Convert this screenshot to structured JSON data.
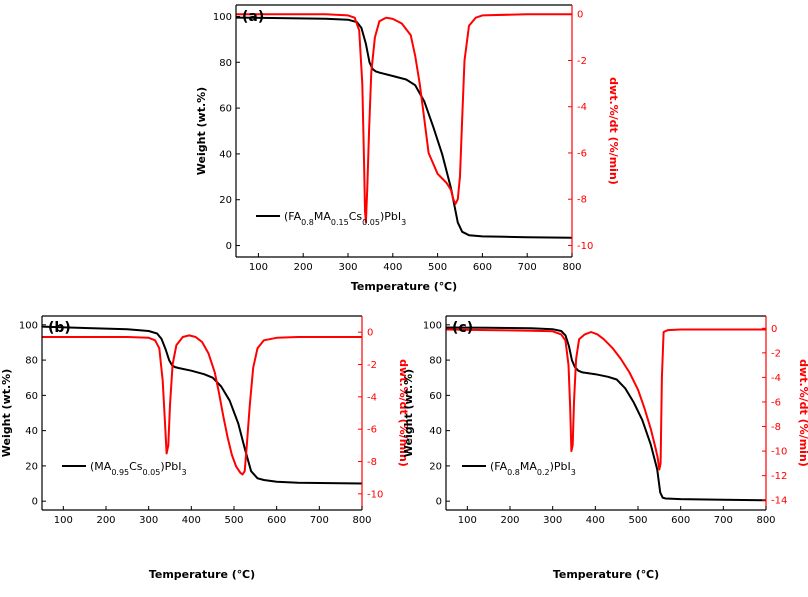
{
  "chart_data": [
    {
      "type": "line",
      "panel_label": "(a)",
      "xlabel": "Temperature (℃)",
      "ylabel": "Weight (wt.%)",
      "y2label": "dwt.%/dt (%/min)",
      "xlim": [
        50,
        800
      ],
      "ylim": [
        -5,
        105
      ],
      "y2lim": [
        -10.5,
        0.4
      ],
      "xticks": [
        100,
        200,
        300,
        400,
        500,
        600,
        700,
        800
      ],
      "yticks": [
        0,
        20,
        40,
        60,
        80,
        100
      ],
      "y2ticks": [
        0,
        -2,
        -4,
        -6,
        -8,
        -10
      ],
      "legend": {
        "label": "(FA0.8MA0.15Cs0.05)PbI3",
        "label_parts": [
          "(FA",
          "0.8",
          "MA",
          "0.15",
          "Cs",
          "0.05",
          ")PbI",
          "3"
        ],
        "position": "bottom-left"
      },
      "series": [
        {
          "name": "Weight",
          "axis": "left",
          "color": "#000000",
          "x": [
            50,
            150,
            250,
            300,
            320,
            330,
            340,
            348,
            355,
            362,
            370,
            400,
            430,
            450,
            470,
            490,
            510,
            530,
            545,
            555,
            570,
            600,
            650,
            700,
            800
          ],
          "y": [
            99.5,
            99.3,
            99,
            98.6,
            97.5,
            95,
            88,
            80,
            77,
            76,
            75.5,
            74,
            72.5,
            70,
            63,
            52,
            40,
            25,
            10,
            6,
            4.5,
            4,
            3.8,
            3.6,
            3.4
          ]
        },
        {
          "name": "dwt.%/dt",
          "axis": "right",
          "color": "#ff0000",
          "x": [
            50,
            150,
            250,
            300,
            315,
            325,
            332,
            336,
            338,
            340,
            343,
            347,
            352,
            360,
            370,
            385,
            400,
            420,
            440,
            450,
            460,
            470,
            480,
            500,
            520,
            530,
            535,
            540,
            545,
            550,
            555,
            560,
            570,
            585,
            600,
            700,
            800
          ],
          "y": [
            0,
            0,
            0,
            -0.05,
            -0.15,
            -0.7,
            -3,
            -6.5,
            -8.5,
            -9,
            -7.5,
            -5,
            -2.5,
            -1,
            -0.3,
            -0.15,
            -0.2,
            -0.4,
            -0.9,
            -1.8,
            -3,
            -4.5,
            -6,
            -6.9,
            -7.3,
            -7.6,
            -8,
            -8.2,
            -8,
            -7,
            -4.5,
            -2,
            -0.5,
            -0.15,
            -0.05,
            0,
            0
          ]
        }
      ]
    },
    {
      "type": "line",
      "panel_label": "(b)",
      "xlabel": "Temperature (℃)",
      "ylabel": "Weight (wt.%)",
      "y2label": "dwt.%/dt (%/min)",
      "xlim": [
        50,
        800
      ],
      "ylim": [
        -5,
        105
      ],
      "y2lim": [
        -11,
        1
      ],
      "xticks": [
        100,
        200,
        300,
        400,
        500,
        600,
        700,
        800
      ],
      "yticks": [
        0,
        20,
        40,
        60,
        80,
        100
      ],
      "y2ticks": [
        0,
        -2,
        -4,
        -6,
        -8,
        -10
      ],
      "legend": {
        "label": "(MA0.95Cs0.05)PbI3",
        "label_parts": [
          "(MA",
          "0.95",
          "Cs",
          "0.05",
          ")PbI",
          "3"
        ],
        "position": "bottom-left"
      },
      "series": [
        {
          "name": "Weight",
          "axis": "left",
          "color": "#000000",
          "x": [
            50,
            150,
            250,
            300,
            320,
            330,
            340,
            348,
            355,
            362,
            370,
            400,
            430,
            450,
            470,
            490,
            510,
            525,
            540,
            555,
            570,
            600,
            650,
            700,
            800
          ],
          "y": [
            99,
            98.2,
            97.5,
            96.5,
            95,
            92,
            86,
            80,
            77,
            76,
            75.5,
            74,
            72,
            70,
            65,
            57,
            44,
            30,
            17,
            13,
            12,
            11,
            10.5,
            10.3,
            10
          ]
        },
        {
          "name": "dwt.%/dt",
          "axis": "right",
          "color": "#ff0000",
          "x": [
            50,
            150,
            250,
            300,
            315,
            325,
            333,
            338,
            342,
            346,
            350,
            356,
            365,
            380,
            395,
            410,
            425,
            440,
            455,
            465,
            475,
            485,
            495,
            505,
            515,
            520,
            525,
            530,
            537,
            545,
            555,
            570,
            600,
            650,
            800
          ],
          "y": [
            -0.3,
            -0.3,
            -0.3,
            -0.35,
            -0.5,
            -1,
            -3,
            -5.5,
            -7.5,
            -7,
            -4.5,
            -2,
            -0.8,
            -0.3,
            -0.2,
            -0.3,
            -0.6,
            -1.3,
            -2.5,
            -3.8,
            -5.2,
            -6.5,
            -7.6,
            -8.3,
            -8.7,
            -8.8,
            -8.6,
            -7,
            -4.5,
            -2.2,
            -1,
            -0.5,
            -0.35,
            -0.3,
            -0.3
          ]
        }
      ]
    },
    {
      "type": "line",
      "panel_label": "(c)",
      "xlabel": "Temperature (℃)",
      "ylabel": "Weight (wt.%)",
      "y2label": "dwt.%/dt (%/min)",
      "xlim": [
        50,
        800
      ],
      "ylim": [
        -5,
        105
      ],
      "y2lim": [
        -14.8,
        1
      ],
      "xticks": [
        100,
        200,
        300,
        400,
        500,
        600,
        700,
        800
      ],
      "yticks": [
        0,
        20,
        40,
        60,
        80,
        100
      ],
      "y2ticks": [
        0,
        -2,
        -4,
        -6,
        -8,
        -10,
        -12,
        -14
      ],
      "legend": {
        "label": "(FA0.8MA0.2)PbI3",
        "label_parts": [
          "(FA",
          "0.8",
          "MA",
          "0.2",
          ")PbI",
          "3"
        ],
        "position": "bottom-left"
      },
      "series": [
        {
          "name": "Weight",
          "axis": "left",
          "color": "#000000",
          "x": [
            50,
            150,
            250,
            300,
            320,
            330,
            338,
            345,
            352,
            360,
            370,
            400,
            430,
            450,
            470,
            490,
            510,
            530,
            545,
            552,
            558,
            565,
            600,
            700,
            800
          ],
          "y": [
            98.5,
            98.3,
            98,
            97.5,
            96.5,
            94,
            88,
            80,
            76,
            74,
            73,
            72,
            70.5,
            69,
            64,
            56,
            46,
            32,
            18,
            5,
            2,
            1.5,
            1.2,
            0.8,
            0.5
          ]
        },
        {
          "name": "dwt.%/dt",
          "axis": "right",
          "color": "#ff0000",
          "x": [
            50,
            150,
            250,
            300,
            320,
            330,
            337,
            341,
            344,
            347,
            350,
            355,
            362,
            375,
            390,
            405,
            420,
            440,
            460,
            480,
            500,
            515,
            530,
            540,
            546,
            550,
            553,
            556,
            560,
            570,
            600,
            800
          ],
          "y": [
            -0.1,
            -0.15,
            -0.2,
            -0.25,
            -0.5,
            -1,
            -3,
            -6.5,
            -10,
            -9.5,
            -6,
            -2.5,
            -0.9,
            -0.5,
            -0.3,
            -0.5,
            -0.9,
            -1.6,
            -2.5,
            -3.6,
            -5,
            -6.5,
            -8.2,
            -9.6,
            -10.5,
            -11.5,
            -11,
            -4,
            -0.3,
            -0.15,
            -0.1,
            -0.1
          ]
        }
      ]
    }
  ]
}
